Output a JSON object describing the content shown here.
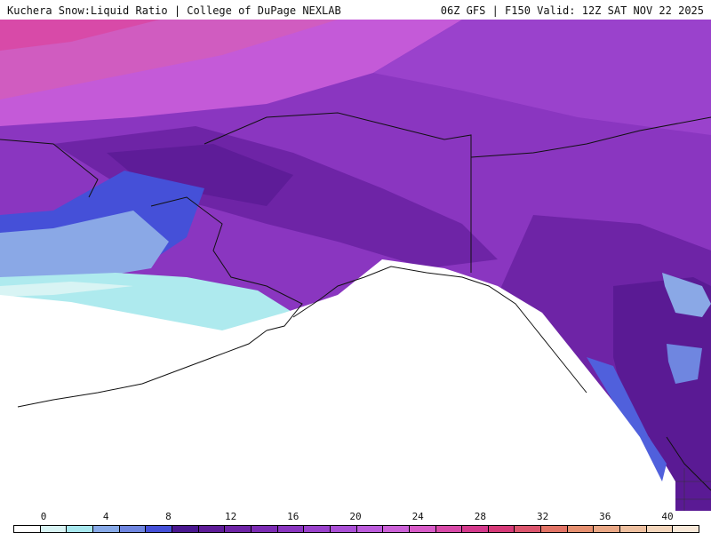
{
  "header": {
    "title_left": "Kuchera Snow:Liquid Ratio | College of DuPage NEXLAB",
    "title_right": "06Z GFS | F150 Valid: 12Z SAT NOV 22 2025"
  },
  "legend": {
    "ticks": [
      "0",
      "4",
      "8",
      "12",
      "16",
      "20",
      "24",
      "28",
      "32",
      "36",
      "40"
    ],
    "colors": [
      "#ffffff",
      "#d8f4f4",
      "#a8e8ee",
      "#88aae8",
      "#6f86e0",
      "#4550d8",
      "#4a1890",
      "#5e1c98",
      "#6e24a6",
      "#7c2cb4",
      "#8a36c0",
      "#9a42cc",
      "#aa50d6",
      "#bc5cdc",
      "#cc62d8",
      "#d85cc8",
      "#d84aa8",
      "#d43a8c",
      "#d63a78",
      "#dc566e",
      "#e27466",
      "#e69070",
      "#eaa886",
      "#eec0a0",
      "#f4d6bc",
      "#f8e8d8"
    ]
  },
  "map": {
    "region": "Alaska",
    "colors": {
      "ocean_white": "#ffffff",
      "cyan": "#aeeaee",
      "light_blue": "#8aa8e6",
      "blue": "#5060dc",
      "dark_purple": "#4e1a92",
      "purple": "#7a2cb2",
      "violet": "#9a44cc",
      "light_violet": "#b458d8",
      "pink": "#d460c8",
      "magenta": "#d848a8"
    }
  }
}
